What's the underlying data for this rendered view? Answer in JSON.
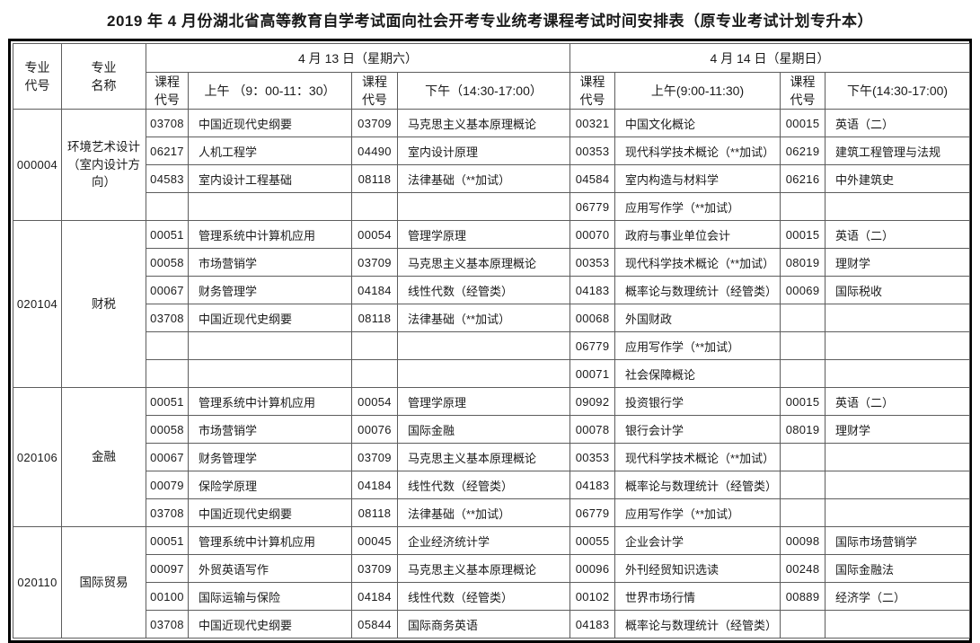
{
  "title": "2019 年 4 月份湖北省高等教育自学考试面向社会开考专业统考课程考试时间安排表（原专业考试计划专升本）",
  "table": {
    "header": {
      "major_code": "专业\n代号",
      "major_name": "专业\n名称",
      "days": [
        {
          "date": "4 月 13 日（星期六）",
          "code_label_am": "课程\n代号",
          "am_label": "上午 （9：00-11：30）",
          "code_label_pm": "课程\n代号",
          "pm_label": "下午（14:30-17:00）"
        },
        {
          "date": "4 月 14 日（星期日）",
          "code_label_am": "课程\n代号",
          "am_label": "上午(9:00-11:30)",
          "code_label_pm": "课程\n代号",
          "pm_label": "下午(14:30-17:00)"
        }
      ]
    },
    "sections": [
      {
        "code": "000004",
        "name": "环境艺术设计\n（室内设计方\n向）",
        "rows": [
          [
            "03708",
            "中国近现代史纲要",
            "03709",
            "马克思主义基本原理概论",
            "00321",
            "中国文化概论",
            "00015",
            "英语（二）"
          ],
          [
            "06217",
            "人机工程学",
            "04490",
            "室内设计原理",
            "00353",
            "现代科学技术概论（**加试）",
            "06219",
            "建筑工程管理与法规"
          ],
          [
            "04583",
            "室内设计工程基础",
            "08118",
            "法律基础（**加试）",
            "04584",
            "室内构造与材料学",
            "06216",
            "中外建筑史"
          ],
          [
            "",
            "",
            "",
            "",
            "06779",
            "应用写作学（**加试）",
            "",
            ""
          ]
        ]
      },
      {
        "code": "020104",
        "name": "财税",
        "rows": [
          [
            "00051",
            "管理系统中计算机应用",
            "00054",
            "管理学原理",
            "00070",
            "政府与事业单位会计",
            "00015",
            "英语（二）"
          ],
          [
            "00058",
            "市场营销学",
            "03709",
            "马克思主义基本原理概论",
            "00353",
            "现代科学技术概论（**加试）",
            "08019",
            "理财学"
          ],
          [
            "00067",
            "财务管理学",
            "04184",
            "线性代数（经管类）",
            "04183",
            "概率论与数理统计（经管类）",
            "00069",
            "国际税收"
          ],
          [
            "03708",
            "中国近现代史纲要",
            "08118",
            "法律基础（**加试）",
            "00068",
            "外国财政",
            "",
            ""
          ],
          [
            "",
            "",
            "",
            "",
            "06779",
            "应用写作学（**加试）",
            "",
            ""
          ],
          [
            "",
            "",
            "",
            "",
            "00071",
            "社会保障概论",
            "",
            ""
          ]
        ]
      },
      {
        "code": "020106",
        "name": "金融",
        "rows": [
          [
            "00051",
            "管理系统中计算机应用",
            "00054",
            "管理学原理",
            "09092",
            "投资银行学",
            "00015",
            "英语（二）"
          ],
          [
            "00058",
            "市场营销学",
            "00076",
            "国际金融",
            "00078",
            "银行会计学",
            "08019",
            "理财学"
          ],
          [
            "00067",
            "财务管理学",
            "03709",
            "马克思主义基本原理概论",
            "00353",
            "现代科学技术概论（**加试）",
            "",
            ""
          ],
          [
            "00079",
            "保险学原理",
            "04184",
            "线性代数（经管类）",
            "04183",
            "概率论与数理统计（经管类）",
            "",
            ""
          ],
          [
            "03708",
            "中国近现代史纲要",
            "08118",
            "法律基础（**加试）",
            "06779",
            "应用写作学（**加试）",
            "",
            ""
          ]
        ]
      },
      {
        "code": "020110",
        "name": "国际贸易",
        "rows": [
          [
            "00051",
            "管理系统中计算机应用",
            "00045",
            "企业经济统计学",
            "00055",
            "企业会计学",
            "00098",
            "国际市场营销学"
          ],
          [
            "00097",
            "外贸英语写作",
            "03709",
            "马克思主义基本原理概论",
            "00096",
            "外刊经贸知识选读",
            "00248",
            "国际金融法"
          ],
          [
            "00100",
            "国际运输与保险",
            "04184",
            "线性代数（经管类）",
            "00102",
            "世界市场行情",
            "00889",
            "经济学（二）"
          ],
          [
            "03708",
            "中国近现代史纲要",
            "05844",
            "国际商务英语",
            "04183",
            "概率论与数理统计（经管类）",
            "",
            ""
          ]
        ]
      }
    ]
  }
}
